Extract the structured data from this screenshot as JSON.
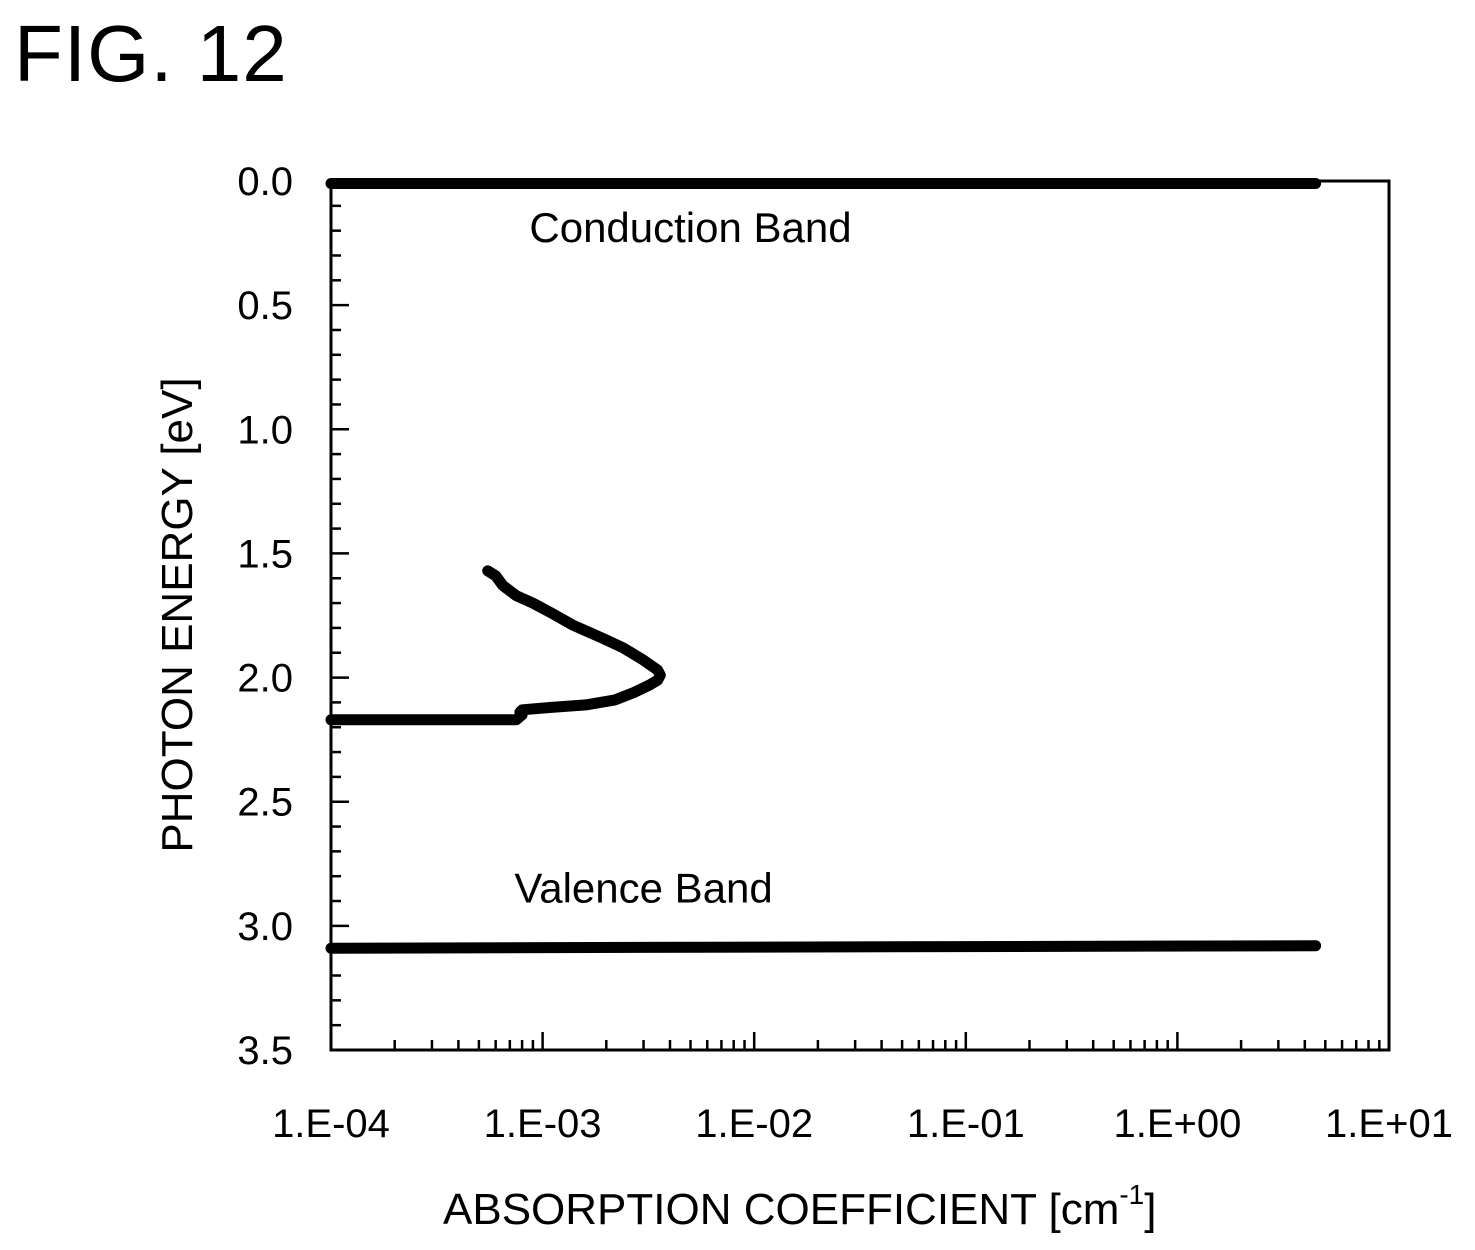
{
  "figure": {
    "title": "FIG. 12"
  },
  "chart_data": {
    "type": "line",
    "title": "",
    "xlabel": "ABSORPTION COEFFICIENT [cm",
    "xlabel_superscript": "-1",
    "xlabel_suffix": "]",
    "ylabel": "PHOTON ENERGY [eV]",
    "x_scale": "log",
    "xlim": [
      0.0001,
      10
    ],
    "ylim": [
      0.0,
      3.5
    ],
    "y_inverted": true,
    "grid": false,
    "x_ticks": [
      "1.E-04",
      "1.E-03",
      "1.E-02",
      "1.E-01",
      "1.E+00",
      "1.E+01"
    ],
    "y_ticks": [
      "0.0",
      "0.5",
      "1.0",
      "1.5",
      "2.0",
      "2.5",
      "3.0",
      "3.5"
    ],
    "series": [
      {
        "x": [
          0.0001,
          0.00013,
          0.0002,
          0.0004,
          0.0006,
          0.00075,
          0.0008,
          0.00078,
          0.0008,
          0.0011,
          0.0016,
          0.0022,
          0.0027,
          0.0032,
          0.0035,
          0.0036,
          0.0035,
          0.003,
          0.0024,
          0.0019,
          0.0014,
          0.0011,
          0.0009,
          0.00075,
          0.0007,
          0.00065,
          0.0006,
          0.00055
        ],
        "y": [
          2.17,
          2.17,
          2.17,
          2.17,
          2.17,
          2.17,
          2.15,
          2.14,
          2.13,
          2.12,
          2.11,
          2.09,
          2.06,
          2.03,
          2.01,
          1.99,
          1.97,
          1.93,
          1.88,
          1.84,
          1.79,
          1.74,
          1.7,
          1.67,
          1.65,
          1.63,
          1.59,
          1.57
        ]
      },
      {
        "x": [
          0.0001,
          4.5
        ],
        "y": [
          0.01,
          0.01
        ]
      },
      {
        "x": [
          0.0001,
          4.5
        ],
        "y": [
          3.09,
          3.08
        ]
      }
    ],
    "annotations": [
      {
        "text": "Conduction Band",
        "x": 0.005,
        "y": 0.19
      },
      {
        "text": "Valence Band",
        "x": 0.003,
        "y": 2.85
      }
    ]
  }
}
